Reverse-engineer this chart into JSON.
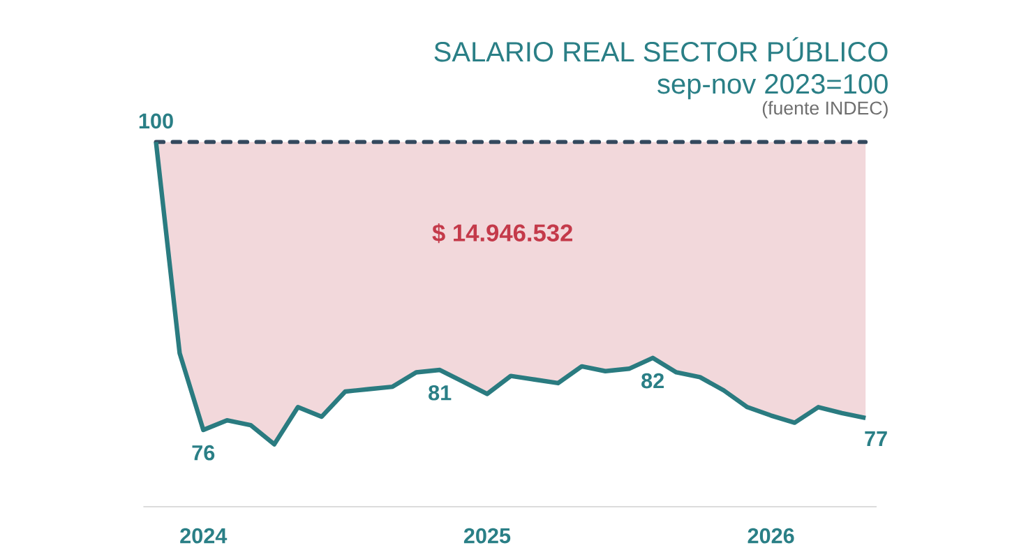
{
  "chart_data": {
    "type": "line",
    "title": "SALARIO REAL SECTOR PÚBLICO",
    "subtitle": "sep-nov 2023=100",
    "annotations": [
      "$ 14.946.532",
      "(fuente INDEC)"
    ],
    "x": [
      "2023-11",
      "2023-12",
      "2024-01",
      "2024-02",
      "2024-03",
      "2024-04",
      "2024-05",
      "2024-06",
      "2024-07",
      "2024-08",
      "2024-09",
      "2024-10",
      "2024-11",
      "2024-12",
      "2025-01",
      "2025-02",
      "2025-03",
      "2025-04",
      "2025-05",
      "2025-06",
      "2025-07",
      "2025-08",
      "2025-09",
      "2025-10",
      "2025-11",
      "2025-12",
      "2026-01",
      "2026-02",
      "2026-03",
      "2026-04",
      "2026-05"
    ],
    "series": [
      {
        "color": "#2a7b80",
        "values": [
          100,
          82.4,
          76,
          76.8,
          76.4,
          74.8,
          77.9,
          77.1,
          79.2,
          79.4,
          79.6,
          80.8,
          81,
          80,
          79,
          80.5,
          80.2,
          79.9,
          81.3,
          80.9,
          81.1,
          82,
          80.8,
          80.4,
          79.3,
          77.9,
          77.2,
          76.6,
          77.9,
          77.4,
          77
        ],
        "lower": [
          100,
          82.4,
          76,
          76.8,
          76.4,
          74.8,
          77.9,
          77.1,
          79.2,
          79.4,
          79.6,
          80.8,
          81,
          80,
          79,
          80.5,
          80.2,
          79.9,
          81.3,
          80.9,
          81.1,
          82,
          80.8,
          80.4,
          79.3,
          77.9,
          77.2,
          76.6,
          77.9,
          77.4,
          77
        ],
        "upper": [
          100,
          100,
          100,
          100,
          100,
          100,
          100,
          100,
          100,
          100,
          100,
          100,
          100,
          100,
          100,
          100,
          100,
          100,
          100,
          100,
          100,
          100,
          100,
          100,
          100,
          100,
          100,
          100,
          100,
          100,
          100
        ],
        "value_labels": [
          "100",
          null,
          "76",
          null,
          null,
          null,
          null,
          null,
          null,
          null,
          null,
          null,
          "81",
          null,
          null,
          null,
          null,
          null,
          null,
          null,
          null,
          "82",
          null,
          null,
          null,
          null,
          null,
          null,
          null,
          null,
          "77"
        ]
      }
    ],
    "xlim": [
      "2023-10-15",
      "2026-05-15"
    ],
    "ylim": [
      69.6,
      100
    ],
    "xticks": [
      {
        "value": "2024-01",
        "label": "2024"
      },
      {
        "value": "2025-01",
        "label": "2025"
      },
      {
        "value": "2026-01",
        "label": "2026"
      }
    ],
    "tick_labels": "x",
    "line_style": "solid",
    "ref_lines": [
      {
        "axis": "y",
        "value": 100,
        "color": "#34495e",
        "line_style": "dashed"
      }
    ]
  }
}
